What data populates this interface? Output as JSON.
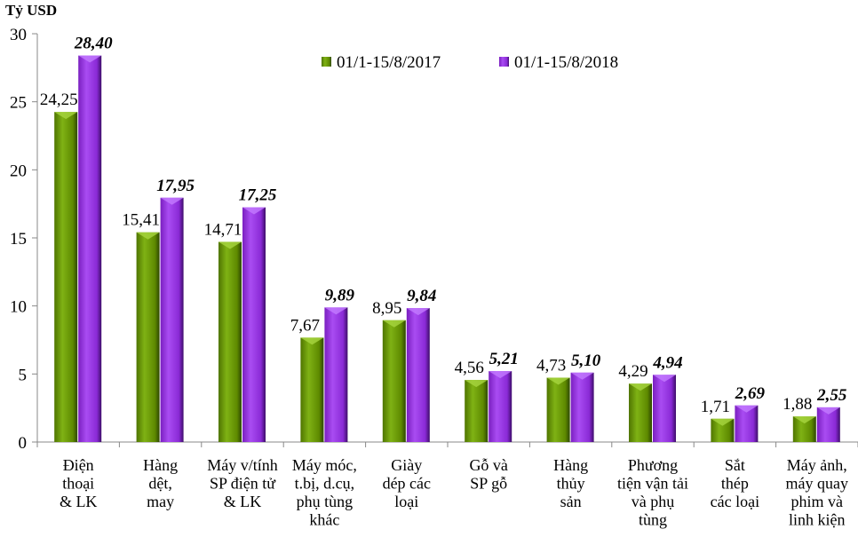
{
  "chart_data": {
    "type": "bar",
    "ylabel": "Tỷ USD",
    "ylim": [
      0,
      30
    ],
    "yticks": [
      0,
      5,
      10,
      15,
      20,
      25,
      30
    ],
    "grid": false,
    "legend_position": "top-right",
    "categories": [
      [
        "Điện",
        "thoại",
        "& LK"
      ],
      [
        "Hàng",
        "dệt,",
        "may"
      ],
      [
        "Máy v/tính",
        "SP điện tử",
        "& LK"
      ],
      [
        "Máy móc,",
        "t.bị, d.cụ,",
        "phụ tùng",
        "khác"
      ],
      [
        "Giày",
        "dép các",
        "loại"
      ],
      [
        "Gỗ và",
        "SP gỗ"
      ],
      [
        "Hàng",
        "thủy",
        "sản"
      ],
      [
        "Phương",
        "tiện vận tải",
        "và phụ",
        "tùng"
      ],
      [
        "Sắt",
        "thép",
        "các loại"
      ],
      [
        "Máy ảnh,",
        "máy quay",
        "phim và",
        "linh kiện"
      ]
    ],
    "series": [
      {
        "name": "01/1-15/8/2017",
        "color": "#6b9a0a",
        "values": [
          24.25,
          15.41,
          14.71,
          7.67,
          8.95,
          4.56,
          4.73,
          4.29,
          1.71,
          1.88
        ],
        "labels": [
          "24,25",
          "15,41",
          "14,71",
          "7,67",
          "8,95",
          "4,56",
          "4,73",
          "4,29",
          "1,71",
          "1,88"
        ]
      },
      {
        "name": "01/1-15/8/2018",
        "color": "#9b30e6",
        "values": [
          28.4,
          17.95,
          17.25,
          9.89,
          9.84,
          5.21,
          5.1,
          4.94,
          2.69,
          2.55
        ],
        "labels": [
          "28,40",
          "17,95",
          "17,25",
          "9,89",
          "9,84",
          "5,21",
          "5,10",
          "4,94",
          "2,69",
          "2,55"
        ]
      }
    ]
  }
}
